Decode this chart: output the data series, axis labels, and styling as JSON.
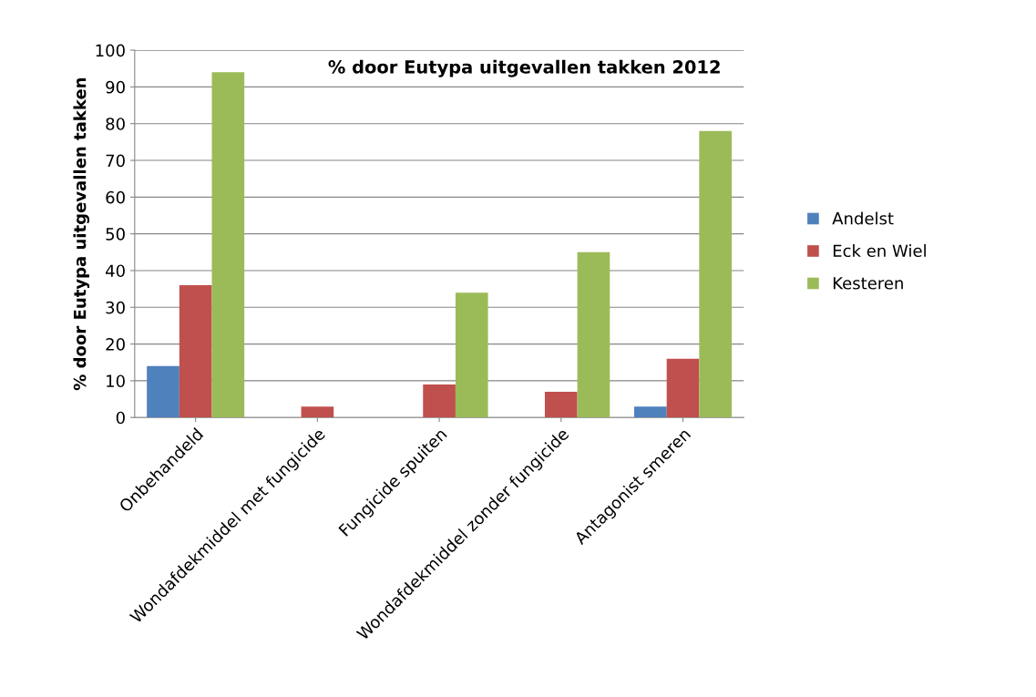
{
  "chart_data": {
    "type": "bar",
    "title": "% door Eutypa uitgevallen takken 2012",
    "ylabel": "% door Eutypa uitgevallen takken",
    "categories": [
      "Onbehandeld",
      "Wondafdekmiddel met fungicide",
      "Fungicide spuiten",
      "Wondafdekmiddel zonder fungicide",
      "Antagonist smeren"
    ],
    "series": [
      {
        "name": "Andelst",
        "color": "#4f81bd",
        "values": [
          14,
          0,
          0,
          0,
          3
        ]
      },
      {
        "name": "Eck en Wiel",
        "color": "#c0504d",
        "values": [
          36,
          3,
          9,
          7,
          16
        ]
      },
      {
        "name": "Kesteren",
        "color": "#9bbb59",
        "values": [
          94,
          0,
          34,
          45,
          78
        ]
      }
    ],
    "ylim": [
      0,
      100
    ],
    "yticks": [
      0,
      10,
      20,
      30,
      40,
      50,
      60,
      70,
      80,
      90,
      100
    ],
    "grid": "y",
    "legend": "right"
  }
}
